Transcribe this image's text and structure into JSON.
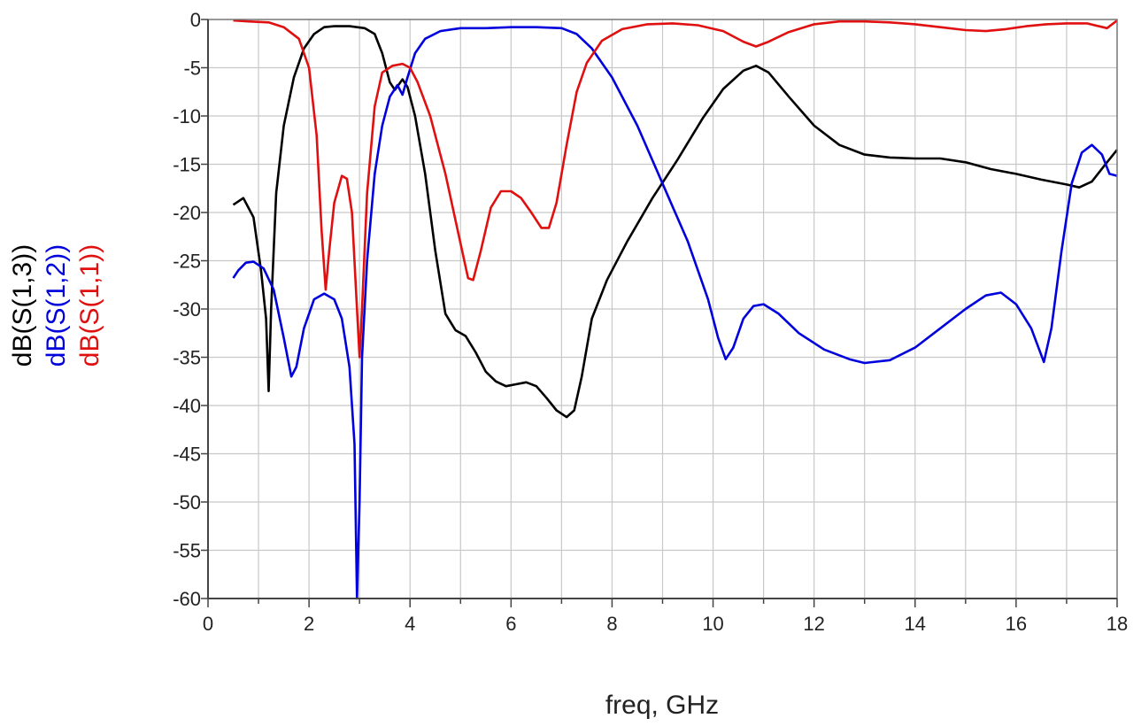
{
  "chart_data": {
    "type": "line",
    "xlabel": "freq, GHz",
    "xlim": [
      0,
      18
    ],
    "ylim": [
      -60,
      0
    ],
    "x_ticks": [
      "0",
      "2",
      "4",
      "6",
      "8",
      "10",
      "12",
      "14",
      "16",
      "18"
    ],
    "y_ticks": [
      "0",
      "-5",
      "-10",
      "-15",
      "-20",
      "-25",
      "-30",
      "-35",
      "-40",
      "-45",
      "-50",
      "-55",
      "-60"
    ],
    "grid": true,
    "x_minor_step": 1,
    "series": [
      {
        "name": "dB(S(1,3))",
        "color": "#000000",
        "points": [
          [
            0.5,
            -19.2
          ],
          [
            0.7,
            -18.5
          ],
          [
            0.9,
            -20.5
          ],
          [
            1.05,
            -26
          ],
          [
            1.15,
            -31
          ],
          [
            1.2,
            -38.5
          ],
          [
            1.25,
            -30
          ],
          [
            1.35,
            -18
          ],
          [
            1.5,
            -11
          ],
          [
            1.7,
            -6
          ],
          [
            1.9,
            -3
          ],
          [
            2.1,
            -1.5
          ],
          [
            2.3,
            -0.8
          ],
          [
            2.5,
            -0.7
          ],
          [
            2.8,
            -0.7
          ],
          [
            3.1,
            -0.9
          ],
          [
            3.3,
            -1.5
          ],
          [
            3.45,
            -3.5
          ],
          [
            3.6,
            -6.5
          ],
          [
            3.7,
            -7.3
          ],
          [
            3.85,
            -6.2
          ],
          [
            3.95,
            -7
          ],
          [
            4.1,
            -10
          ],
          [
            4.3,
            -16
          ],
          [
            4.5,
            -24
          ],
          [
            4.7,
            -30.5
          ],
          [
            4.9,
            -32.2
          ],
          [
            5.1,
            -32.8
          ],
          [
            5.3,
            -34.5
          ],
          [
            5.5,
            -36.5
          ],
          [
            5.7,
            -37.5
          ],
          [
            5.9,
            -38
          ],
          [
            6.1,
            -37.8
          ],
          [
            6.3,
            -37.6
          ],
          [
            6.5,
            -38
          ],
          [
            6.7,
            -39.2
          ],
          [
            6.9,
            -40.5
          ],
          [
            7.1,
            -41.2
          ],
          [
            7.25,
            -40.5
          ],
          [
            7.4,
            -37
          ],
          [
            7.6,
            -31
          ],
          [
            7.9,
            -27
          ],
          [
            8.3,
            -23
          ],
          [
            8.8,
            -18.5
          ],
          [
            9.3,
            -14.5
          ],
          [
            9.8,
            -10.2
          ],
          [
            10.2,
            -7.2
          ],
          [
            10.6,
            -5.3
          ],
          [
            10.85,
            -4.8
          ],
          [
            11.1,
            -5.5
          ],
          [
            11.5,
            -8
          ],
          [
            12,
            -11
          ],
          [
            12.5,
            -13
          ],
          [
            13,
            -14
          ],
          [
            13.5,
            -14.3
          ],
          [
            14,
            -14.4
          ],
          [
            14.5,
            -14.4
          ],
          [
            15,
            -14.8
          ],
          [
            15.5,
            -15.5
          ],
          [
            16,
            -16
          ],
          [
            16.5,
            -16.6
          ],
          [
            17,
            -17.1
          ],
          [
            17.25,
            -17.4
          ],
          [
            17.5,
            -16.8
          ],
          [
            17.8,
            -14.8
          ],
          [
            18,
            -13.5
          ]
        ]
      },
      {
        "name": "dB(S(1,2))",
        "color": "#0000dd",
        "points": [
          [
            0.5,
            -26.8
          ],
          [
            0.6,
            -26
          ],
          [
            0.75,
            -25.2
          ],
          [
            0.9,
            -25.1
          ],
          [
            1.1,
            -25.8
          ],
          [
            1.3,
            -28
          ],
          [
            1.5,
            -33
          ],
          [
            1.65,
            -37
          ],
          [
            1.75,
            -36
          ],
          [
            1.9,
            -32
          ],
          [
            2.1,
            -29
          ],
          [
            2.3,
            -28.4
          ],
          [
            2.5,
            -29
          ],
          [
            2.65,
            -31
          ],
          [
            2.8,
            -36
          ],
          [
            2.9,
            -44
          ],
          [
            2.95,
            -60
          ],
          [
            3.0,
            -50
          ],
          [
            3.05,
            -35
          ],
          [
            3.15,
            -25
          ],
          [
            3.3,
            -16
          ],
          [
            3.45,
            -11
          ],
          [
            3.6,
            -8
          ],
          [
            3.75,
            -6.8
          ],
          [
            3.85,
            -7.8
          ],
          [
            3.95,
            -6
          ],
          [
            4.1,
            -3.5
          ],
          [
            4.3,
            -2
          ],
          [
            4.6,
            -1.2
          ],
          [
            5,
            -0.9
          ],
          [
            5.5,
            -0.9
          ],
          [
            6,
            -0.8
          ],
          [
            6.5,
            -0.8
          ],
          [
            7,
            -0.9
          ],
          [
            7.3,
            -1.5
          ],
          [
            7.6,
            -3
          ],
          [
            8,
            -6
          ],
          [
            8.5,
            -11
          ],
          [
            9,
            -17
          ],
          [
            9.5,
            -23
          ],
          [
            9.9,
            -29
          ],
          [
            10.1,
            -33
          ],
          [
            10.25,
            -35.2
          ],
          [
            10.4,
            -34
          ],
          [
            10.6,
            -31
          ],
          [
            10.8,
            -29.7
          ],
          [
            11,
            -29.5
          ],
          [
            11.3,
            -30.5
          ],
          [
            11.7,
            -32.5
          ],
          [
            12.2,
            -34.2
          ],
          [
            12.7,
            -35.2
          ],
          [
            13,
            -35.6
          ],
          [
            13.5,
            -35.3
          ],
          [
            14,
            -34
          ],
          [
            14.5,
            -32
          ],
          [
            15,
            -30
          ],
          [
            15.4,
            -28.6
          ],
          [
            15.7,
            -28.3
          ],
          [
            16,
            -29.5
          ],
          [
            16.3,
            -32
          ],
          [
            16.55,
            -35.5
          ],
          [
            16.7,
            -32
          ],
          [
            16.9,
            -24
          ],
          [
            17.1,
            -17
          ],
          [
            17.3,
            -13.8
          ],
          [
            17.5,
            -13
          ],
          [
            17.7,
            -14
          ],
          [
            17.85,
            -16
          ],
          [
            18,
            -16.2
          ]
        ]
      },
      {
        "name": "dB(S(1,1))",
        "color": "#e01010",
        "points": [
          [
            0.5,
            -0.1
          ],
          [
            0.8,
            -0.2
          ],
          [
            1.2,
            -0.3
          ],
          [
            1.5,
            -0.8
          ],
          [
            1.8,
            -2
          ],
          [
            2.0,
            -5
          ],
          [
            2.15,
            -12
          ],
          [
            2.25,
            -22
          ],
          [
            2.33,
            -28
          ],
          [
            2.4,
            -24
          ],
          [
            2.5,
            -19
          ],
          [
            2.65,
            -16.2
          ],
          [
            2.75,
            -16.5
          ],
          [
            2.85,
            -20
          ],
          [
            2.95,
            -30
          ],
          [
            3.0,
            -35
          ],
          [
            3.05,
            -30
          ],
          [
            3.15,
            -18
          ],
          [
            3.3,
            -9
          ],
          [
            3.45,
            -5.5
          ],
          [
            3.65,
            -4.8
          ],
          [
            3.85,
            -4.6
          ],
          [
            4.0,
            -5
          ],
          [
            4.15,
            -6.5
          ],
          [
            4.4,
            -10
          ],
          [
            4.7,
            -16
          ],
          [
            4.95,
            -22
          ],
          [
            5.15,
            -26.8
          ],
          [
            5.25,
            -27
          ],
          [
            5.4,
            -24
          ],
          [
            5.6,
            -19.5
          ],
          [
            5.8,
            -17.8
          ],
          [
            6.0,
            -17.8
          ],
          [
            6.2,
            -18.5
          ],
          [
            6.4,
            -20
          ],
          [
            6.6,
            -21.6
          ],
          [
            6.75,
            -21.6
          ],
          [
            6.9,
            -19
          ],
          [
            7.1,
            -13
          ],
          [
            7.3,
            -7.5
          ],
          [
            7.5,
            -4.5
          ],
          [
            7.8,
            -2.2
          ],
          [
            8.2,
            -1
          ],
          [
            8.7,
            -0.5
          ],
          [
            9.2,
            -0.4
          ],
          [
            9.7,
            -0.6
          ],
          [
            10.2,
            -1.2
          ],
          [
            10.6,
            -2.3
          ],
          [
            10.85,
            -2.8
          ],
          [
            11.1,
            -2.3
          ],
          [
            11.5,
            -1.3
          ],
          [
            12,
            -0.5
          ],
          [
            12.5,
            -0.2
          ],
          [
            13,
            -0.2
          ],
          [
            13.5,
            -0.3
          ],
          [
            14,
            -0.5
          ],
          [
            14.5,
            -0.8
          ],
          [
            15,
            -1.1
          ],
          [
            15.4,
            -1.2
          ],
          [
            15.8,
            -1
          ],
          [
            16.2,
            -0.7
          ],
          [
            16.6,
            -0.5
          ],
          [
            17,
            -0.4
          ],
          [
            17.4,
            -0.4
          ],
          [
            17.8,
            -0.9
          ],
          [
            18,
            -0.1
          ]
        ]
      }
    ]
  }
}
